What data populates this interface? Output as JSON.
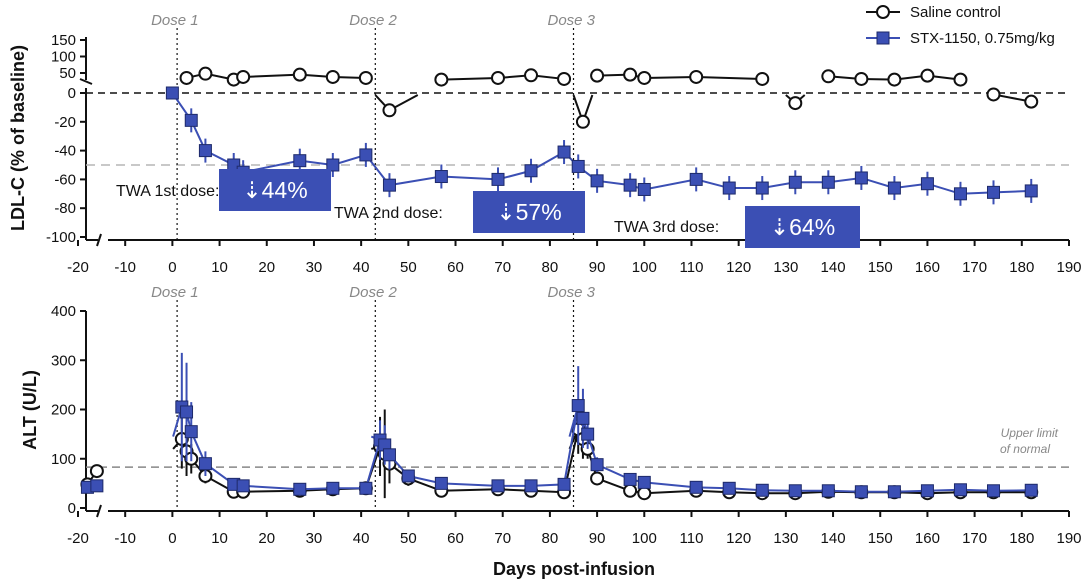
{
  "chart_data": [
    {
      "type": "line",
      "panel": "top",
      "ylabel": "LDL-C (% of baseline)",
      "xlim": [
        -20,
        190
      ],
      "ylim": [
        -100,
        0
      ],
      "ylim_break": [
        50,
        150
      ],
      "yticks_lower": [
        0,
        -20,
        -40,
        -60,
        -80,
        -100
      ],
      "yticks_upper": [
        50,
        100,
        150
      ],
      "reference_line": -50,
      "dose_markers": [
        {
          "label": "Dose 1",
          "x": 1
        },
        {
          "label": "Dose 2",
          "x": 43
        },
        {
          "label": "Dose 3",
          "x": 85
        }
      ],
      "twa_annotations": [
        {
          "label": "TWA 1st dose:",
          "value": "⇣44%"
        },
        {
          "label": "TWA 2nd dose:",
          "value": "⇣57%"
        },
        {
          "label": "TWA 3rd dose:",
          "value": "⇣64%"
        }
      ],
      "series": [
        {
          "name": "Saline control",
          "marker": "open-circle",
          "color": "#111111",
          "segments": [
            {
              "x": [
                3,
                7,
                13,
                15,
                27,
                34,
                41
              ],
              "y": [
                35,
                48,
                30,
                38,
                45,
                38,
                35
              ]
            },
            {
              "x": [
                46
              ],
              "y": [
                -12
              ]
            },
            {
              "x": [
                57,
                69,
                76,
                83
              ],
              "y": [
                30,
                35,
                43,
                32
              ]
            },
            {
              "x": [
                87
              ],
              "y": [
                -20
              ]
            },
            {
              "x": [
                90,
                97,
                100,
                111,
                125
              ],
              "y": [
                42,
                45,
                35,
                38,
                32
              ]
            },
            {
              "x": [
                132
              ],
              "y": [
                -7
              ]
            },
            {
              "x": [
                139,
                146,
                153,
                160,
                167
              ],
              "y": [
                40,
                32,
                30,
                42,
                30
              ]
            },
            {
              "x": [
                174,
                182
              ],
              "y": [
                -1,
                -6
              ]
            }
          ]
        },
        {
          "name": "STX-1150, 0.75mg/kg",
          "marker": "filled-square",
          "color": "#3B4FB4",
          "x": [
            0,
            4,
            7,
            13,
            15,
            27,
            34,
            41,
            46,
            57,
            69,
            76,
            83,
            86,
            90,
            97,
            100,
            111,
            118,
            125,
            132,
            139,
            146,
            153,
            160,
            167,
            174,
            182
          ],
          "y": [
            0,
            -19,
            -40,
            -50,
            -55,
            -47,
            -50,
            -43,
            -64,
            -58,
            -60,
            -54,
            -41,
            -51,
            -61,
            -64,
            -67,
            -60,
            -66,
            -66,
            -62,
            -62,
            -59,
            -66,
            -63,
            -70,
            -69,
            -68
          ]
        }
      ]
    },
    {
      "type": "line",
      "panel": "bottom",
      "xlabel": "Days post-infusion",
      "ylabel": "ALT (U/L)",
      "xlim": [
        -20,
        190
      ],
      "ylim": [
        0,
        400
      ],
      "yticks": [
        0,
        100,
        200,
        300,
        400
      ],
      "xticks": [
        -20,
        -10,
        0,
        10,
        20,
        30,
        40,
        50,
        60,
        70,
        80,
        90,
        100,
        110,
        120,
        130,
        140,
        150,
        160,
        170,
        180,
        190
      ],
      "reference_line": 83,
      "reference_label": [
        "Upper limit",
        "of normal"
      ],
      "dose_markers": [
        {
          "label": "Dose 1",
          "x": 1
        },
        {
          "label": "Dose 2",
          "x": 43
        },
        {
          "label": "Dose 3",
          "x": 85
        }
      ],
      "series": [
        {
          "name": "Saline control",
          "marker": "open-circle",
          "color": "#111111",
          "x": [
            -18,
            -16,
            2,
            3,
            4,
            7,
            13,
            15,
            27,
            34,
            41,
            44,
            45,
            46,
            50,
            57,
            69,
            76,
            83,
            86,
            87,
            88,
            90,
            97,
            100,
            111,
            118,
            125,
            132,
            139,
            146,
            153,
            160,
            167,
            174,
            182
          ],
          "y": [
            48,
            75,
            140,
            115,
            100,
            65,
            33,
            33,
            35,
            38,
            40,
            125,
            110,
            90,
            60,
            35,
            38,
            35,
            32,
            160,
            140,
            120,
            60,
            35,
            30,
            35,
            32,
            30,
            30,
            33,
            32,
            32,
            30,
            32,
            32,
            32
          ],
          "err": [
            0,
            0,
            60,
            50,
            30,
            15,
            0,
            0,
            0,
            0,
            0,
            60,
            90,
            40,
            15,
            0,
            0,
            0,
            0,
            50,
            40,
            20,
            10,
            0,
            0,
            0,
            0,
            0,
            0,
            0,
            0,
            0,
            0,
            0,
            0,
            0
          ]
        },
        {
          "name": "STX-1150, 0.75mg/kg",
          "marker": "filled-square",
          "color": "#3B4FB4",
          "x": [
            -18,
            -16,
            2,
            3,
            4,
            7,
            13,
            15,
            27,
            34,
            41,
            44,
            45,
            46,
            50,
            57,
            69,
            76,
            83,
            86,
            87,
            88,
            90,
            97,
            100,
            111,
            118,
            125,
            132,
            139,
            146,
            153,
            160,
            167,
            174,
            182
          ],
          "y": [
            42,
            45,
            205,
            195,
            155,
            90,
            48,
            45,
            38,
            40,
            40,
            138,
            128,
            108,
            65,
            50,
            45,
            45,
            48,
            208,
            182,
            150,
            88,
            58,
            52,
            42,
            40,
            36,
            35,
            35,
            33,
            33,
            35,
            37,
            35,
            36
          ],
          "err": [
            0,
            0,
            110,
            100,
            60,
            25,
            0,
            0,
            0,
            0,
            0,
            40,
            40,
            30,
            0,
            0,
            0,
            0,
            0,
            80,
            60,
            30,
            15,
            0,
            0,
            0,
            0,
            0,
            0,
            0,
            0,
            0,
            0,
            0,
            0,
            0
          ]
        }
      ]
    }
  ],
  "legend": {
    "placement": "top-right",
    "items": [
      "Saline control",
      "STX-1150, 0.75mg/kg"
    ]
  },
  "colors": {
    "treatment": "#3B4FB4",
    "control": "#111111",
    "twa_box": "#3B4FB4",
    "reference": "#aaaaaa"
  }
}
